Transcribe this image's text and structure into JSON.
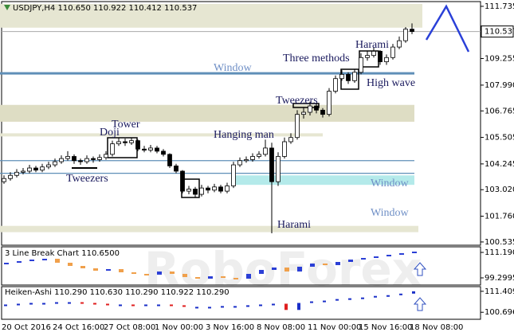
{
  "chart_data": [
    {
      "type": "candlestick",
      "title": "USDJPY,H4  110.650 110.922 110.412 110.537",
      "watermark": "RoboForex",
      "categories": [
        "20 Oct 2016",
        null,
        null,
        null,
        null,
        null,
        null,
        null,
        "24 Oct 16:00",
        null,
        null,
        null,
        null,
        null,
        null,
        null,
        "27 Oct 08:00",
        null,
        null,
        null,
        null,
        null,
        null,
        null,
        "1 Nov 00:00",
        null,
        null,
        null,
        null,
        null,
        null,
        null,
        "3 Nov 16:00",
        null,
        null,
        null,
        null,
        null,
        null,
        null,
        "8 Nov 08:00",
        null,
        null,
        null,
        null,
        null,
        null,
        null,
        "11 Nov 00:00",
        null,
        null,
        null,
        null,
        null,
        null,
        null,
        "15 Nov 16:00",
        null,
        null,
        null,
        null,
        null,
        null,
        null,
        "18 Nov 08:00"
      ],
      "open": [
        103.4,
        103.55,
        103.7,
        103.85,
        103.9,
        104.05,
        103.95,
        104.1,
        104.2,
        104.35,
        104.5,
        104.6,
        104.4,
        104.35,
        104.5,
        104.45,
        104.55,
        104.7,
        105.2,
        105.3,
        105.25,
        105.35,
        104.95,
        104.9,
        105.0,
        104.85,
        104.7,
        104.15,
        103.9,
        102.95,
        103.05,
        102.8,
        103.1,
        103.0,
        103.15,
        102.95,
        103.2,
        104.2,
        104.4,
        104.45,
        104.6,
        104.7,
        105.0,
        103.4,
        104.6,
        105.3,
        105.5,
        106.6,
        106.7,
        107.0,
        106.8,
        106.6,
        107.7,
        108.3,
        108.5,
        108.2,
        108.6,
        109.3,
        109.4,
        109.6,
        109.1,
        109.3,
        109.8,
        110.1,
        110.65
      ],
      "high": [
        103.7,
        103.85,
        104.0,
        104.05,
        104.2,
        104.15,
        104.25,
        104.35,
        104.5,
        104.65,
        104.85,
        104.7,
        104.5,
        104.65,
        104.6,
        104.7,
        104.85,
        105.35,
        105.5,
        105.45,
        105.5,
        105.4,
        105.1,
        105.15,
        105.1,
        104.95,
        104.75,
        104.25,
        103.95,
        103.2,
        103.15,
        103.25,
        103.2,
        103.3,
        103.25,
        103.35,
        104.35,
        104.55,
        104.6,
        104.75,
        104.85,
        105.4,
        105.25,
        104.8,
        105.5,
        105.7,
        106.8,
        106.95,
        107.2,
        107.1,
        106.9,
        107.85,
        108.45,
        108.7,
        108.6,
        108.75,
        109.5,
        109.6,
        109.8,
        109.65,
        109.45,
        109.95,
        110.3,
        110.75,
        110.922
      ],
      "low": [
        103.3,
        103.45,
        103.6,
        103.75,
        103.8,
        103.85,
        103.85,
        104.0,
        104.1,
        104.25,
        104.4,
        104.25,
        104.2,
        104.25,
        104.3,
        104.35,
        104.45,
        104.6,
        105.1,
        105.1,
        105.15,
        104.85,
        104.8,
        104.8,
        104.75,
        104.6,
        104.05,
        103.8,
        102.85,
        102.8,
        102.65,
        102.7,
        102.85,
        102.9,
        102.85,
        102.85,
        103.1,
        104.1,
        104.3,
        104.35,
        104.5,
        104.6,
        100.95,
        103.2,
        104.5,
        105.2,
        105.4,
        106.4,
        106.55,
        106.65,
        106.45,
        106.5,
        107.6,
        108.2,
        108.05,
        108.1,
        108.5,
        109.15,
        109.3,
        108.95,
        108.95,
        109.2,
        109.7,
        110.0,
        110.412
      ],
      "close": [
        103.55,
        103.7,
        103.85,
        103.9,
        104.05,
        103.95,
        104.1,
        104.2,
        104.35,
        104.5,
        104.6,
        104.4,
        104.35,
        104.5,
        104.45,
        104.55,
        104.7,
        105.2,
        105.3,
        105.25,
        105.35,
        104.95,
        104.9,
        105.0,
        104.85,
        104.7,
        104.15,
        103.9,
        102.95,
        103.05,
        102.8,
        103.1,
        103.0,
        103.15,
        102.95,
        103.2,
        104.2,
        104.4,
        104.45,
        104.6,
        104.7,
        105.0,
        103.4,
        104.6,
        105.3,
        105.5,
        106.6,
        106.7,
        107.0,
        106.8,
        106.6,
        107.7,
        108.3,
        108.5,
        108.2,
        108.6,
        109.3,
        109.4,
        109.6,
        109.1,
        109.3,
        109.8,
        110.1,
        110.65,
        110.537
      ],
      "last_price": 110.537,
      "ylim": [
        100.38,
        111.96
      ],
      "yticks": [
        111.735,
        109.255,
        {
          "value": 107.99,
          "label": "107.990"
        },
        106.765,
        105.505,
        104.245,
        {
          "value": 103.02,
          "label": "103.020"
        },
        {
          "value": 101.76,
          "label": "101.760"
        },
        100.535
      ],
      "zones": [
        {
          "from": 110.72,
          "to": 111.85,
          "color": "#e6e6d2"
        },
        {
          "from": 106.25,
          "to": 107.05,
          "color": "#deddc4"
        },
        {
          "from": 105.55,
          "to": 105.7,
          "color": "#e6e6d2"
        },
        {
          "from": 101.0,
          "to": 101.3,
          "color": "#e6e6d2"
        },
        {
          "from": 103.25,
          "to": 103.7,
          "color": "#b4eaea"
        }
      ],
      "levels": [
        {
          "value": 108.55,
          "color": "#5f8fb8"
        },
        {
          "value": 104.4,
          "color": "#5f8fb8"
        },
        {
          "value": 103.8,
          "color": "#5f8fb8"
        }
      ],
      "annotations": [
        "Window",
        "Window",
        "Window",
        "Tower",
        "Doji",
        "Tweezers",
        "Hanging man",
        "Tweezers",
        "Three methods",
        "Harami",
        "High wave",
        "Harami"
      ]
    },
    {
      "type": "line_break",
      "title": "3 Line Break Chart 110.6500",
      "up_color": "#2b3fd6",
      "down_color": "#f0a04b",
      "values": [
        106.36,
        107.1,
        107.85,
        108.22,
        106.36,
        104.87,
        103.76,
        102.64,
        103.39,
        101.9,
        101.16,
        100.79,
        102.27,
        101.16,
        99.67,
        98.93,
        100.04,
        99.3,
        98.93,
        101.16,
        103.01,
        104.13,
        102.27,
        104.5,
        105.99,
        105.25,
        106.73,
        107.85,
        108.59,
        109.33,
        110.08,
        110.82,
        111.56
      ],
      "ylim": [
        95.95,
        113.79
      ],
      "yticks": [
        111.1905,
        99.2995
      ]
    },
    {
      "type": "heiken_ashi",
      "title": "Heiken-Ashi 110.290 110.630 110.290 110.922 110.290",
      "up_color": "#1a2fc8",
      "down_color": "#e02020",
      "values": [
        104.66,
        105.06,
        105.46,
        105.46,
        105.85,
        105.85,
        105.46,
        105.06,
        104.66,
        104.66,
        104.27,
        104.66,
        104.66,
        104.27,
        103.47,
        103.47,
        103.47,
        103.87,
        103.87,
        104.27,
        104.66,
        105.06,
        101.89,
        105.46,
        106.25,
        106.65,
        107.44,
        107.84,
        108.24,
        109.03,
        109.43,
        110.22,
        111.41
      ],
      "ylim": [
        97.12,
        113.79
      ],
      "yticks": [
        111.409,
        100.696
      ]
    }
  ]
}
